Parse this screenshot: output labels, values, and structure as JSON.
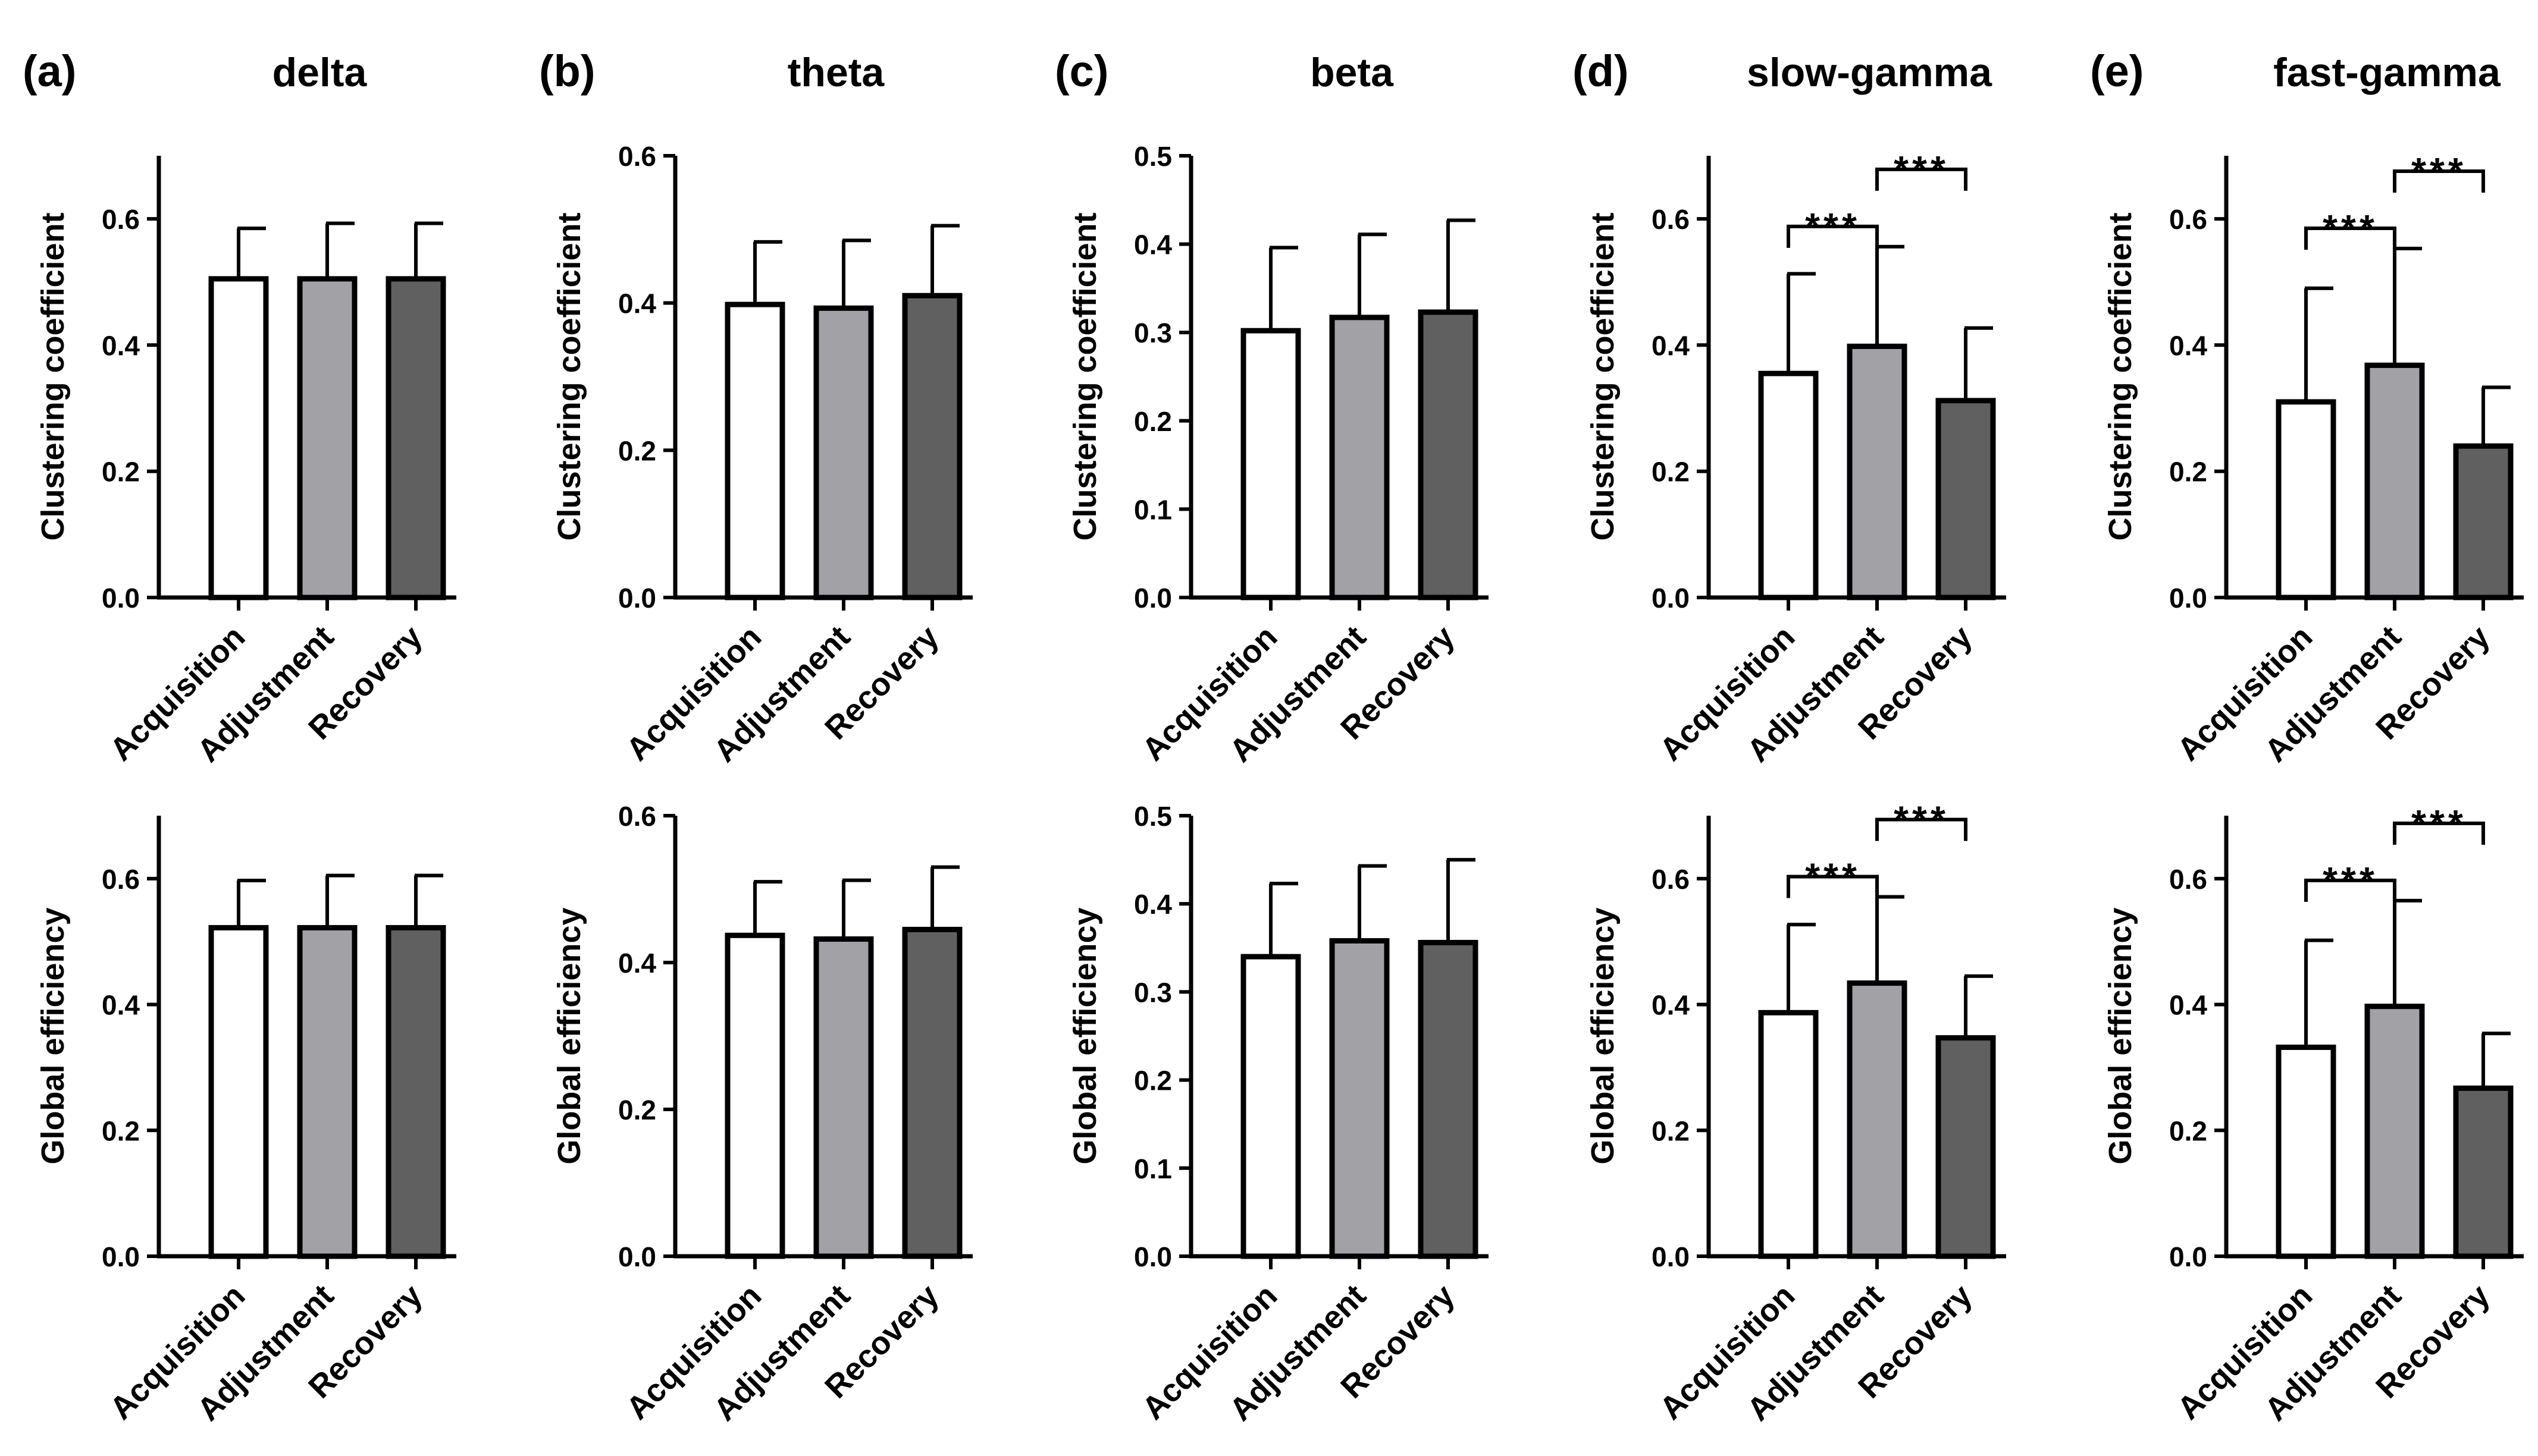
{
  "colors": {
    "Acquisition": "#ffffff",
    "Adjustment": "#a1a1a6",
    "Recovery": "#606060",
    "axis": "#000000"
  },
  "chart_data": [
    {
      "panel": "(a)",
      "title": "delta",
      "type": "bar",
      "ylabel": "Clustering coefficient",
      "categories": [
        "Acquisition",
        "Adjustment",
        "Recovery"
      ],
      "values": [
        0.505,
        0.505,
        0.505
      ],
      "errors": [
        0.08,
        0.088,
        0.088
      ],
      "ylim": [
        0,
        0.7
      ],
      "yticks": [
        "0.0",
        "0.2",
        "0.4",
        "0.6"
      ],
      "tickvals": [
        0,
        0.2,
        0.4,
        0.6
      ],
      "significance": []
    },
    {
      "panel": "(b)",
      "title": "theta",
      "type": "bar",
      "ylabel": "Clustering coefficient",
      "categories": [
        "Acquisition",
        "Adjustment",
        "Recovery"
      ],
      "values": [
        0.398,
        0.393,
        0.41
      ],
      "errors": [
        0.085,
        0.092,
        0.095
      ],
      "ylim": [
        0,
        0.6
      ],
      "yticks": [
        "0.0",
        "0.2",
        "0.4",
        "0.6"
      ],
      "tickvals": [
        0,
        0.2,
        0.4,
        0.6
      ],
      "significance": []
    },
    {
      "panel": "(c)",
      "title": "beta",
      "type": "bar",
      "ylabel": "Clustering coefficient",
      "categories": [
        "Acquisition",
        "Adjustment",
        "Recovery"
      ],
      "values": [
        0.302,
        0.317,
        0.323
      ],
      "errors": [
        0.094,
        0.094,
        0.104
      ],
      "ylim": [
        0,
        0.5
      ],
      "yticks": [
        "0.0",
        "0.1",
        "0.2",
        "0.3",
        "0.4",
        "0.5"
      ],
      "tickvals": [
        0,
        0.1,
        0.2,
        0.3,
        0.4,
        0.5
      ],
      "significance": []
    },
    {
      "panel": "(d)",
      "title": "slow-gamma",
      "type": "bar",
      "ylabel": "Clustering coefficient",
      "categories": [
        "Acquisition",
        "Adjustment",
        "Recovery"
      ],
      "values": [
        0.355,
        0.398,
        0.312
      ],
      "errors": [
        0.158,
        0.158,
        0.115
      ],
      "ylim": [
        0,
        0.7
      ],
      "yticks": [
        "0.0",
        "0.2",
        "0.4",
        "0.6"
      ],
      "tickvals": [
        0,
        0.2,
        0.4,
        0.6
      ],
      "significance": [
        {
          "pair": [
            0,
            1
          ],
          "label": "***"
        },
        {
          "pair": [
            1,
            2
          ],
          "label": "***"
        }
      ]
    },
    {
      "panel": "(e)",
      "title": "fast-gamma",
      "type": "bar",
      "ylabel": "Clustering coefficient",
      "categories": [
        "Acquisition",
        "Adjustment",
        "Recovery"
      ],
      "values": [
        0.31,
        0.368,
        0.24
      ],
      "errors": [
        0.18,
        0.185,
        0.093
      ],
      "ylim": [
        0,
        0.7
      ],
      "yticks": [
        "0.0",
        "0.2",
        "0.4",
        "0.6"
      ],
      "tickvals": [
        0,
        0.2,
        0.4,
        0.6
      ],
      "significance": [
        {
          "pair": [
            0,
            1
          ],
          "label": "***"
        },
        {
          "pair": [
            1,
            2
          ],
          "label": "***"
        }
      ]
    },
    {
      "panel": "",
      "title": "",
      "type": "bar",
      "ylabel": "Global efficiency",
      "categories": [
        "Acquisition",
        "Adjustment",
        "Recovery"
      ],
      "values": [
        0.522,
        0.522,
        0.522
      ],
      "errors": [
        0.075,
        0.083,
        0.083
      ],
      "ylim": [
        0,
        0.7
      ],
      "yticks": [
        "0.0",
        "0.2",
        "0.4",
        "0.6"
      ],
      "tickvals": [
        0,
        0.2,
        0.4,
        0.6
      ],
      "significance": []
    },
    {
      "panel": "",
      "title": "",
      "type": "bar",
      "ylabel": "Global efficiency",
      "categories": [
        "Acquisition",
        "Adjustment",
        "Recovery"
      ],
      "values": [
        0.437,
        0.432,
        0.445
      ],
      "errors": [
        0.073,
        0.08,
        0.085
      ],
      "ylim": [
        0,
        0.6
      ],
      "yticks": [
        "0.0",
        "0.2",
        "0.4",
        "0.6"
      ],
      "tickvals": [
        0,
        0.2,
        0.4,
        0.6
      ],
      "significance": []
    },
    {
      "panel": "",
      "title": "",
      "type": "bar",
      "ylabel": "Global efficiency",
      "categories": [
        "Acquisition",
        "Adjustment",
        "Recovery"
      ],
      "values": [
        0.34,
        0.358,
        0.356
      ],
      "errors": [
        0.083,
        0.085,
        0.094
      ],
      "ylim": [
        0,
        0.5
      ],
      "yticks": [
        "0.0",
        "0.1",
        "0.2",
        "0.3",
        "0.4",
        "0.5"
      ],
      "tickvals": [
        0,
        0.1,
        0.2,
        0.3,
        0.4,
        0.5
      ],
      "significance": []
    },
    {
      "panel": "",
      "title": "",
      "type": "bar",
      "ylabel": "Global efficiency",
      "categories": [
        "Acquisition",
        "Adjustment",
        "Recovery"
      ],
      "values": [
        0.387,
        0.434,
        0.347
      ],
      "errors": [
        0.14,
        0.137,
        0.098
      ],
      "ylim": [
        0,
        0.7
      ],
      "yticks": [
        "0.0",
        "0.2",
        "0.4",
        "0.6"
      ],
      "tickvals": [
        0,
        0.2,
        0.4,
        0.6
      ],
      "significance": [
        {
          "pair": [
            0,
            1
          ],
          "label": "***"
        },
        {
          "pair": [
            1,
            2
          ],
          "label": "***"
        }
      ]
    },
    {
      "panel": "",
      "title": "",
      "type": "bar",
      "ylabel": "Global efficiency",
      "categories": [
        "Acquisition",
        "Adjustment",
        "Recovery"
      ],
      "values": [
        0.332,
        0.397,
        0.267
      ],
      "errors": [
        0.17,
        0.168,
        0.087
      ],
      "ylim": [
        0,
        0.7
      ],
      "yticks": [
        "0.0",
        "0.2",
        "0.4",
        "0.6"
      ],
      "tickvals": [
        0,
        0.2,
        0.4,
        0.6
      ],
      "significance": [
        {
          "pair": [
            0,
            1
          ],
          "label": "***"
        },
        {
          "pair": [
            1,
            2
          ],
          "label": "***"
        }
      ]
    }
  ]
}
